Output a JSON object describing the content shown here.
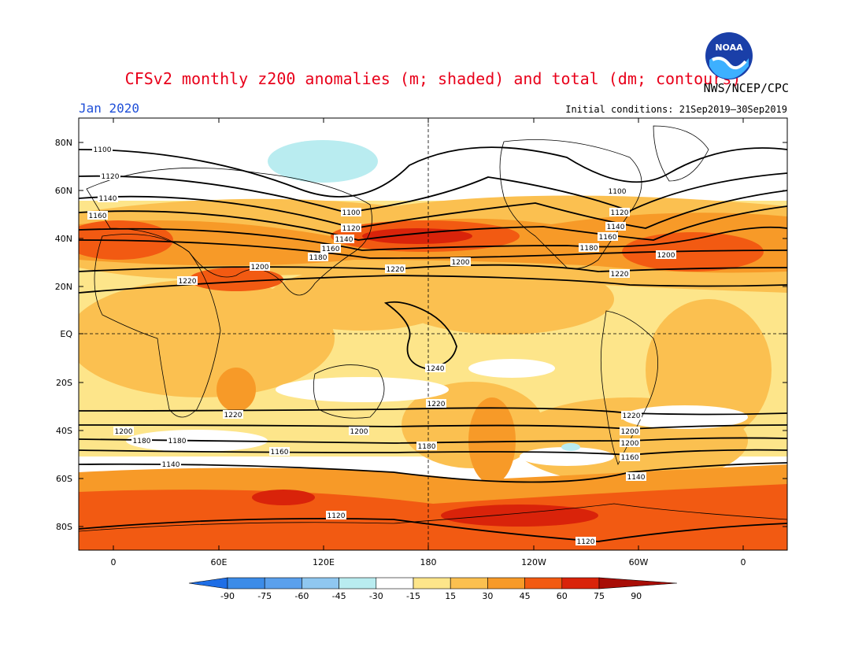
{
  "header": {
    "title": "CFSv2 monthly z200 anomalies (m; shaded) and total (dm; contours)",
    "agency": "NWS/NCEP/CPC",
    "month": "Jan 2020",
    "initial_conditions": "Initial conditions: 21Sep2019–30Sep2019",
    "logo_text": "NOAA"
  },
  "axes": {
    "lat_labels": [
      "80N",
      "60N",
      "40N",
      "20N",
      "EQ",
      "20S",
      "40S",
      "60S",
      "80S"
    ],
    "lon_labels": [
      "0",
      "60E",
      "120E",
      "180",
      "120W",
      "60W",
      "0"
    ]
  },
  "colorbar": {
    "ticks": [
      "-90",
      "-75",
      "-60",
      "-45",
      "-30",
      "-15",
      "15",
      "30",
      "45",
      "60",
      "75",
      "90"
    ],
    "colors": [
      "#1e6ee6",
      "#3c8ce8",
      "#5aa0ec",
      "#8fc7f0",
      "#b9ecf0",
      "#ffffff",
      "#fde58a",
      "#fbc050",
      "#f79a28",
      "#f25a12",
      "#d9230a",
      "#a80d06"
    ]
  },
  "contour_labels": [
    "1100",
    "1120",
    "1140",
    "1160",
    "1100",
    "1120",
    "1140",
    "1160",
    "1180",
    "1200",
    "1220",
    "1100",
    "1120",
    "1140",
    "1160",
    "1180",
    "1200",
    "1220",
    "1200",
    "1240",
    "1220",
    "1220",
    "1220",
    "1200",
    "1200",
    "1180",
    "1180",
    "1160",
    "1160",
    "1140",
    "1140",
    "1120",
    "1120",
    "1200",
    "1220",
    "1200",
    "1180"
  ]
}
